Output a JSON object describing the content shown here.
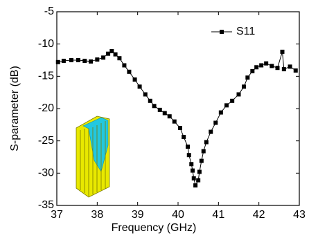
{
  "chart_data": {
    "type": "line",
    "xlabel": "Frequency (GHz)",
    "ylabel": "S-parameter (dB)",
    "xlim": [
      37,
      43
    ],
    "xticks": [
      37,
      38,
      39,
      40,
      41,
      42,
      43
    ],
    "ylim": [
      -35,
      -5
    ],
    "yticks": [
      -35,
      -30,
      -25,
      -20,
      -15,
      -10,
      -5
    ],
    "legend": "upper right",
    "marker": "square",
    "x": [
      37.03,
      37.17,
      37.36,
      37.53,
      37.69,
      37.84,
      38.0,
      38.15,
      38.27,
      38.36,
      38.45,
      38.55,
      38.67,
      38.79,
      38.93,
      39.05,
      39.19,
      39.31,
      39.41,
      39.55,
      39.67,
      39.79,
      39.91,
      40.05,
      40.14,
      40.24,
      40.27,
      40.33,
      40.36,
      40.39,
      40.43,
      40.5,
      40.53,
      40.58,
      40.63,
      40.7,
      40.81,
      40.93,
      41.06,
      41.2,
      41.34,
      41.5,
      41.63,
      41.72,
      41.84,
      41.94,
      42.06,
      42.18,
      42.32,
      42.46,
      42.58,
      42.62,
      42.77,
      42.91
    ],
    "series": [
      {
        "name": "S11",
        "color": "#000000",
        "values": [
          -12.8,
          -12.6,
          -12.5,
          -12.5,
          -12.6,
          -12.7,
          -12.4,
          -12.1,
          -11.5,
          -11.1,
          -11.6,
          -12.2,
          -13.3,
          -14.3,
          -15.5,
          -16.6,
          -17.8,
          -18.8,
          -19.6,
          -20.2,
          -20.7,
          -21.2,
          -22.0,
          -23.0,
          -24.4,
          -25.9,
          -27.2,
          -28.6,
          -29.6,
          -30.8,
          -31.9,
          -31.1,
          -29.8,
          -28.1,
          -26.6,
          -25.2,
          -23.6,
          -22.2,
          -20.6,
          -19.5,
          -18.8,
          -17.8,
          -16.6,
          -15.2,
          -14.2,
          -13.6,
          -13.3,
          -13.0,
          -13.4,
          -13.7,
          -11.2,
          -13.9,
          -13.5,
          -14.1
        ]
      }
    ]
  }
}
